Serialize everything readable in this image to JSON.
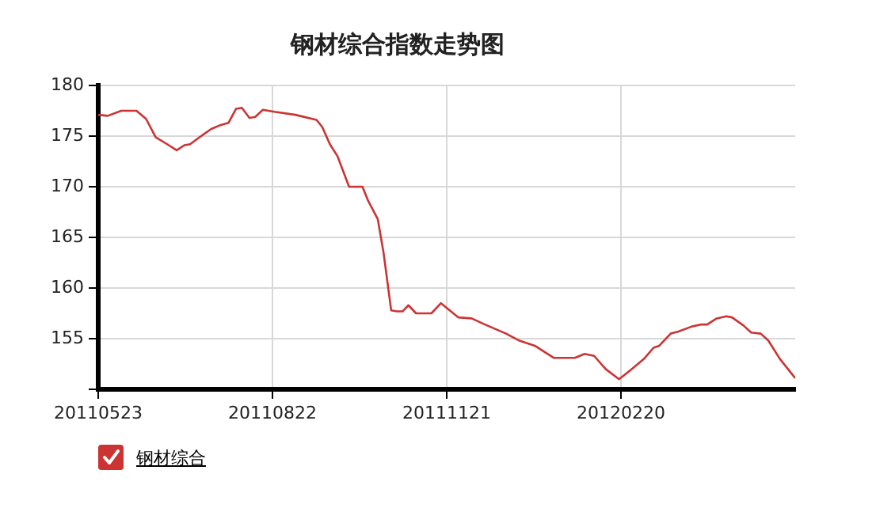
{
  "chart_data": {
    "type": "line",
    "title": "钢材综合指数走势图",
    "x": [
      "2011-05-23",
      "2011-05-28",
      "2011-06-04",
      "2011-06-12",
      "2011-06-17",
      "2011-06-22",
      "2011-06-28",
      "2011-07-03",
      "2011-07-07",
      "2011-07-10",
      "2011-07-15",
      "2011-07-21",
      "2011-07-26",
      "2011-07-30",
      "2011-08-03",
      "2011-08-06",
      "2011-08-10",
      "2011-08-13",
      "2011-08-17",
      "2011-08-23",
      "2011-09-03",
      "2011-09-14",
      "2011-09-17",
      "2011-09-21",
      "2011-09-25",
      "2011-09-28",
      "2011-10-01",
      "2011-10-08",
      "2011-10-11",
      "2011-10-16",
      "2011-10-19",
      "2011-10-23",
      "2011-10-26",
      "2011-10-29",
      "2011-11-01",
      "2011-11-05",
      "2011-11-13",
      "2011-11-18",
      "2011-11-27",
      "2011-12-04",
      "2011-12-11",
      "2011-12-22",
      "2011-12-29",
      "2012-01-06",
      "2012-01-16",
      "2012-01-27",
      "2012-02-01",
      "2012-02-06",
      "2012-02-12",
      "2012-02-19",
      "2012-02-25",
      "2012-03-03",
      "2012-03-08",
      "2012-03-11",
      "2012-03-17",
      "2012-03-21",
      "2012-03-28",
      "2012-04-02",
      "2012-04-05",
      "2012-04-10",
      "2012-04-15",
      "2012-04-18",
      "2012-04-24",
      "2012-04-28",
      "2012-05-03",
      "2012-05-07",
      "2012-05-13",
      "2012-05-21"
    ],
    "series": [
      {
        "name": "钢材综合",
        "color": "#cc3333",
        "values": [
          177.1,
          177.0,
          177.5,
          177.5,
          176.7,
          174.9,
          174.2,
          173.6,
          174.1,
          174.2,
          174.9,
          175.7,
          176.1,
          176.3,
          177.7,
          177.8,
          176.8,
          176.9,
          177.6,
          177.4,
          177.1,
          176.6,
          175.9,
          174.2,
          173.0,
          171.5,
          170.0,
          170.0,
          168.6,
          166.8,
          163.5,
          157.8,
          157.7,
          157.7,
          158.3,
          157.5,
          157.5,
          158.5,
          157.1,
          157.0,
          156.4,
          155.5,
          154.8,
          154.3,
          153.1,
          153.1,
          153.5,
          153.3,
          152.0,
          151.0,
          151.9,
          153.0,
          154.1,
          154.3,
          155.5,
          155.7,
          156.2,
          156.4,
          156.4,
          157.0,
          157.2,
          157.1,
          156.3,
          155.6,
          155.5,
          154.8,
          153.0,
          151.1
        ]
      }
    ],
    "xlim": [
      "2011-05-23",
      "2012-05-21"
    ],
    "xticks": [
      {
        "value": "2011-05-23",
        "label": "20110523"
      },
      {
        "value": "2011-08-22",
        "label": "20110822"
      },
      {
        "value": "2011-11-21",
        "label": "20111121"
      },
      {
        "value": "2012-02-20",
        "label": "20120220"
      }
    ],
    "ylim": [
      150,
      180
    ],
    "yticks": [
      {
        "value": 150,
        "label": null
      },
      155,
      160,
      165,
      170,
      175,
      180
    ],
    "grid": true,
    "legend": "bottom left",
    "marker": "none",
    "line_style": "solid"
  }
}
